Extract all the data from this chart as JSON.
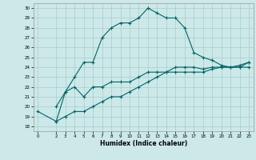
{
  "xlabel": "Humidex (Indice chaleur)",
  "ylabel": "",
  "background_color": "#cce8e8",
  "grid_color": "#aacccc",
  "line_color": "#006666",
  "xlim": [
    -0.5,
    23.5
  ],
  "ylim": [
    17.5,
    30.5
  ],
  "xticks": [
    0,
    2,
    3,
    4,
    5,
    6,
    7,
    8,
    9,
    10,
    11,
    12,
    13,
    14,
    15,
    16,
    17,
    18,
    19,
    20,
    21,
    22,
    23
  ],
  "yticks": [
    18,
    19,
    20,
    21,
    22,
    23,
    24,
    25,
    26,
    27,
    28,
    29,
    30
  ],
  "curve1_x": [
    2,
    3,
    4,
    5,
    6,
    7,
    8,
    9,
    10,
    11,
    12,
    13,
    14,
    15,
    16,
    17,
    18,
    19,
    20,
    21,
    22,
    23
  ],
  "curve1_y": [
    20.0,
    21.5,
    23.0,
    24.5,
    24.5,
    27.0,
    28.0,
    28.5,
    28.5,
    29.0,
    30.0,
    29.5,
    29.0,
    29.0,
    28.0,
    25.5,
    25.0,
    24.7,
    24.2,
    24.0,
    24.0,
    24.5
  ],
  "curve2_x": [
    2,
    3,
    4,
    5,
    6,
    7,
    8,
    9,
    10,
    11,
    12,
    13,
    14,
    15,
    16,
    17,
    18,
    19,
    20,
    21,
    22,
    23
  ],
  "curve2_y": [
    18.5,
    21.5,
    22.0,
    21.0,
    22.0,
    22.0,
    22.5,
    22.5,
    22.5,
    23.0,
    23.5,
    23.5,
    23.5,
    24.0,
    24.0,
    24.0,
    23.8,
    24.0,
    24.0,
    24.0,
    24.0,
    24.0
  ],
  "curve3_x": [
    0,
    2,
    3,
    4,
    5,
    6,
    7,
    8,
    9,
    10,
    11,
    12,
    13,
    14,
    15,
    16,
    17,
    18,
    19,
    20,
    21,
    22,
    23
  ],
  "curve3_y": [
    19.5,
    18.5,
    19.0,
    19.5,
    19.5,
    20.0,
    20.5,
    21.0,
    21.0,
    21.5,
    22.0,
    22.5,
    23.0,
    23.5,
    23.5,
    23.5,
    23.5,
    23.5,
    23.8,
    24.0,
    24.0,
    24.2,
    24.5
  ]
}
